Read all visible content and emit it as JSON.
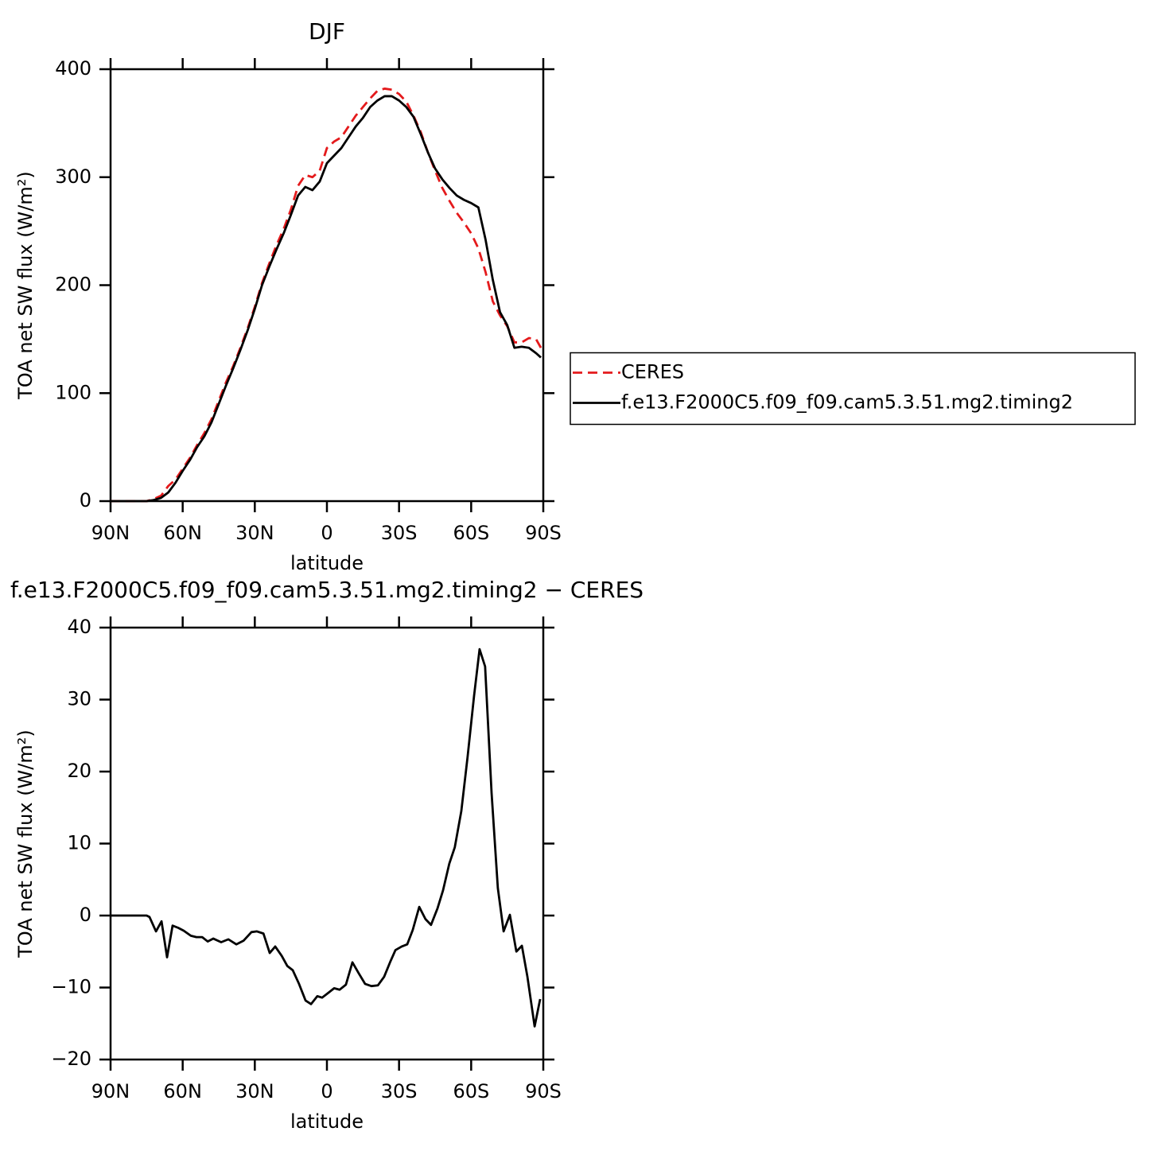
{
  "chart_data": [
    {
      "type": "line",
      "title": "DJF",
      "xlabel": "latitude",
      "ylabel": "TOA net SW flux (W/m²)",
      "xlim": [
        90,
        -90
      ],
      "ylim": [
        0,
        400
      ],
      "xticks": [
        {
          "value": 90,
          "label": "90N"
        },
        {
          "value": 60,
          "label": "60N"
        },
        {
          "value": 30,
          "label": "30N"
        },
        0,
        {
          "value": -30,
          "label": "30S"
        },
        {
          "value": -60,
          "label": "60S"
        },
        {
          "value": -90,
          "label": "90S"
        }
      ],
      "yticks": [
        0,
        100,
        200,
        300,
        400
      ],
      "legend": "right",
      "x": [
        90,
        84,
        78,
        75,
        72,
        69,
        66,
        63,
        60,
        57,
        54,
        51,
        48,
        45,
        42,
        39,
        36,
        33,
        30,
        27,
        24,
        21,
        18,
        15,
        12,
        9,
        6,
        3,
        0,
        -3,
        -6,
        -9,
        -12,
        -15,
        -18,
        -21,
        -24,
        -27,
        -30,
        -33,
        -36,
        -39,
        -42,
        -45,
        -48,
        -51,
        -54,
        -57,
        -60,
        -63,
        -66,
        -69,
        -72,
        -75,
        -78,
        -81,
        -84,
        -87,
        -89
      ],
      "series": [
        {
          "name": "CERES",
          "color": "#e41a1c",
          "dash": "12,7",
          "values": [
            0,
            0,
            0,
            0,
            2,
            5,
            14,
            20,
            30,
            40,
            52,
            63,
            76,
            93,
            110,
            125,
            142,
            160,
            180,
            202,
            220,
            237,
            252,
            270,
            292,
            302,
            300,
            306,
            327,
            333,
            337,
            347,
            357,
            365,
            373,
            380,
            382,
            381,
            377,
            370,
            357,
            342,
            323,
            306,
            290,
            278,
            267,
            258,
            248,
            234,
            212,
            185,
            172,
            162,
            147,
            147,
            151,
            150,
            142
          ]
        },
        {
          "name": "f.e13.F2000C5.f09_f09.cam5.3.51.mg2.timing2",
          "color": "#000000",
          "values": [
            0,
            0,
            0,
            0,
            1,
            3,
            8,
            17,
            28,
            38,
            50,
            60,
            73,
            90,
            107,
            123,
            140,
            158,
            178,
            200,
            217,
            233,
            248,
            265,
            283,
            291,
            288,
            296,
            313,
            320,
            327,
            337,
            347,
            355,
            365,
            371,
            375,
            375,
            371,
            365,
            356,
            340,
            323,
            308,
            298,
            290,
            283,
            279,
            276,
            272,
            242,
            205,
            175,
            163,
            142,
            143,
            142,
            137,
            133
          ]
        }
      ]
    },
    {
      "type": "line",
      "title": "f.e13.F2000C5.f09_f09.cam5.3.51.mg2.timing2 − CERES",
      "xlabel": "latitude",
      "ylabel": "TOA net SW flux (W/m²)",
      "xlim": [
        90,
        -90
      ],
      "ylim": [
        -20,
        40
      ],
      "xticks": [
        {
          "value": 90,
          "label": "90N"
        },
        {
          "value": 60,
          "label": "60N"
        },
        {
          "value": 30,
          "label": "30N"
        },
        0,
        {
          "value": -30,
          "label": "30S"
        },
        {
          "value": -60,
          "label": "60S"
        },
        {
          "value": -90,
          "label": "90S"
        }
      ],
      "yticks": [
        {
          "value": -20,
          "label": "−20"
        },
        {
          "value": -10,
          "label": "−10"
        },
        0,
        10,
        20,
        30,
        40
      ],
      "x": [
        90,
        89,
        75,
        73.8,
        71.1,
        68.8,
        66.5,
        64.2,
        61.9,
        59.6,
        56.6,
        54.3,
        51.9,
        49.6,
        47.3,
        44,
        41,
        37.7,
        34.7,
        31.4,
        29.1,
        26.4,
        23.8,
        21.5,
        18.8,
        16.5,
        14.2,
        11.6,
        8.9,
        6.6,
        4,
        2,
        -0.7,
        -3,
        -5.3,
        -7.9,
        -10.6,
        -13.2,
        -15.9,
        -18.5,
        -21.2,
        -23.8,
        -26.5,
        -28.5,
        -31.1,
        -33.4,
        -35.7,
        -38.4,
        -41,
        -43.3,
        -46,
        -48.3,
        -50.9,
        -53.2,
        -55.9,
        -58.5,
        -61.2,
        -63.5,
        -65.8,
        -68.5,
        -71.1,
        -73.5,
        -76.1,
        -78.8,
        -81.1,
        -83.4,
        -86.4,
        -88.7
      ],
      "series": [
        {
          "color": "#000000",
          "values": [
            0,
            0,
            0,
            -0.2,
            -2.2,
            -0.8,
            -5.8,
            -1.4,
            -1.7,
            -2.1,
            -2.8,
            -3,
            -3,
            -3.6,
            -3.2,
            -3.7,
            -3.3,
            -4,
            -3.5,
            -2.3,
            -2.2,
            -2.5,
            -5.2,
            -4.3,
            -5.6,
            -7,
            -7.6,
            -9.5,
            -11.8,
            -12.3,
            -11.2,
            -11.4,
            -10.7,
            -10.1,
            -10.3,
            -9.6,
            -6.5,
            -8,
            -9.5,
            -9.8,
            -9.7,
            -8.5,
            -6.3,
            -4.8,
            -4.3,
            -4,
            -2,
            1.2,
            -0.5,
            -1.3,
            1,
            3.5,
            7.2,
            9.5,
            14.5,
            22,
            30.5,
            37,
            34.6,
            17,
            3.8,
            -2.2,
            0.1,
            -5,
            -4.2,
            -8.5,
            -15.4,
            -11.6
          ]
        }
      ]
    }
  ]
}
